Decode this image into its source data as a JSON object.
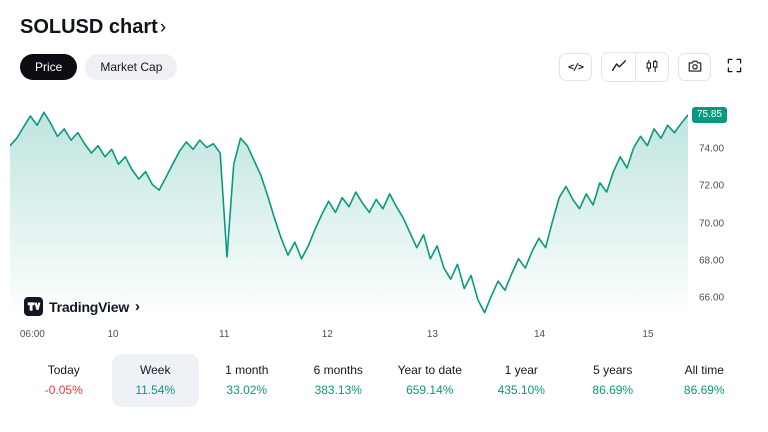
{
  "header": {
    "title": "SOLUSD chart",
    "chevron": "›"
  },
  "toggles": {
    "price": "Price",
    "market_cap": "Market Cap"
  },
  "toolbar": {
    "code_glyph": "</>"
  },
  "attribution": {
    "name": "TradingView",
    "chevron": "›"
  },
  "chart_data": {
    "type": "area",
    "symbol": "SOLUSD",
    "title": "SOLUSD chart",
    "line_color": "#089981",
    "current_price": "75.85",
    "current_price_value": 75.85,
    "ylim": [
      64.8,
      77.2
    ],
    "y_ticks": [
      {
        "label": "74.00",
        "value": 74
      },
      {
        "label": "72.00",
        "value": 72
      },
      {
        "label": "70.00",
        "value": 70
      },
      {
        "label": "68.00",
        "value": 68
      },
      {
        "label": "66.00",
        "value": 66
      }
    ],
    "x_ticks": [
      {
        "label": "06:00",
        "pos": 0.033
      },
      {
        "label": "10",
        "pos": 0.152
      },
      {
        "label": "11",
        "pos": 0.316
      },
      {
        "label": "12",
        "pos": 0.468
      },
      {
        "label": "13",
        "pos": 0.623
      },
      {
        "label": "14",
        "pos": 0.781
      },
      {
        "label": "15",
        "pos": 0.941
      }
    ],
    "values": [
      74.2,
      74.6,
      75.2,
      75.8,
      75.3,
      76.0,
      75.4,
      74.7,
      75.1,
      74.5,
      74.9,
      74.3,
      73.8,
      74.2,
      73.6,
      74.0,
      73.2,
      73.6,
      72.9,
      72.4,
      72.8,
      72.1,
      71.8,
      72.5,
      73.2,
      73.9,
      74.4,
      74.0,
      74.5,
      74.1,
      74.3,
      73.8,
      68.2,
      73.2,
      74.6,
      74.2,
      73.4,
      72.6,
      71.5,
      70.3,
      69.2,
      68.3,
      69.0,
      68.1,
      68.8,
      69.7,
      70.5,
      71.2,
      70.6,
      71.4,
      70.9,
      71.7,
      71.1,
      70.6,
      71.3,
      70.8,
      71.6,
      70.9,
      70.3,
      69.5,
      68.7,
      69.4,
      68.1,
      68.8,
      67.6,
      67.0,
      67.8,
      66.5,
      67.2,
      65.9,
      65.2,
      66.1,
      66.9,
      66.4,
      67.3,
      68.1,
      67.6,
      68.5,
      69.2,
      68.7,
      70.1,
      71.4,
      72.0,
      71.3,
      70.8,
      71.6,
      71.0,
      72.2,
      71.7,
      72.8,
      73.6,
      73.0,
      74.1,
      74.7,
      74.2,
      75.1,
      74.6,
      75.3,
      74.9,
      75.4,
      75.85
    ]
  },
  "stats": {
    "items": [
      {
        "label": "Today",
        "value": "-0.05%",
        "trend": "down",
        "selected": false
      },
      {
        "label": "Week",
        "value": "11.54%",
        "trend": "up",
        "selected": true
      },
      {
        "label": "1 month",
        "value": "33.02%",
        "trend": "up",
        "selected": false
      },
      {
        "label": "6 months",
        "value": "383.13%",
        "trend": "up",
        "selected": false
      },
      {
        "label": "Year to date",
        "value": "659.14%",
        "trend": "up",
        "selected": false
      },
      {
        "label": "1 year",
        "value": "435.10%",
        "trend": "up",
        "selected": false
      },
      {
        "label": "5 years",
        "value": "86.69%",
        "trend": "up",
        "selected": false
      },
      {
        "label": "All time",
        "value": "86.69%",
        "trend": "up",
        "selected": false
      }
    ]
  }
}
